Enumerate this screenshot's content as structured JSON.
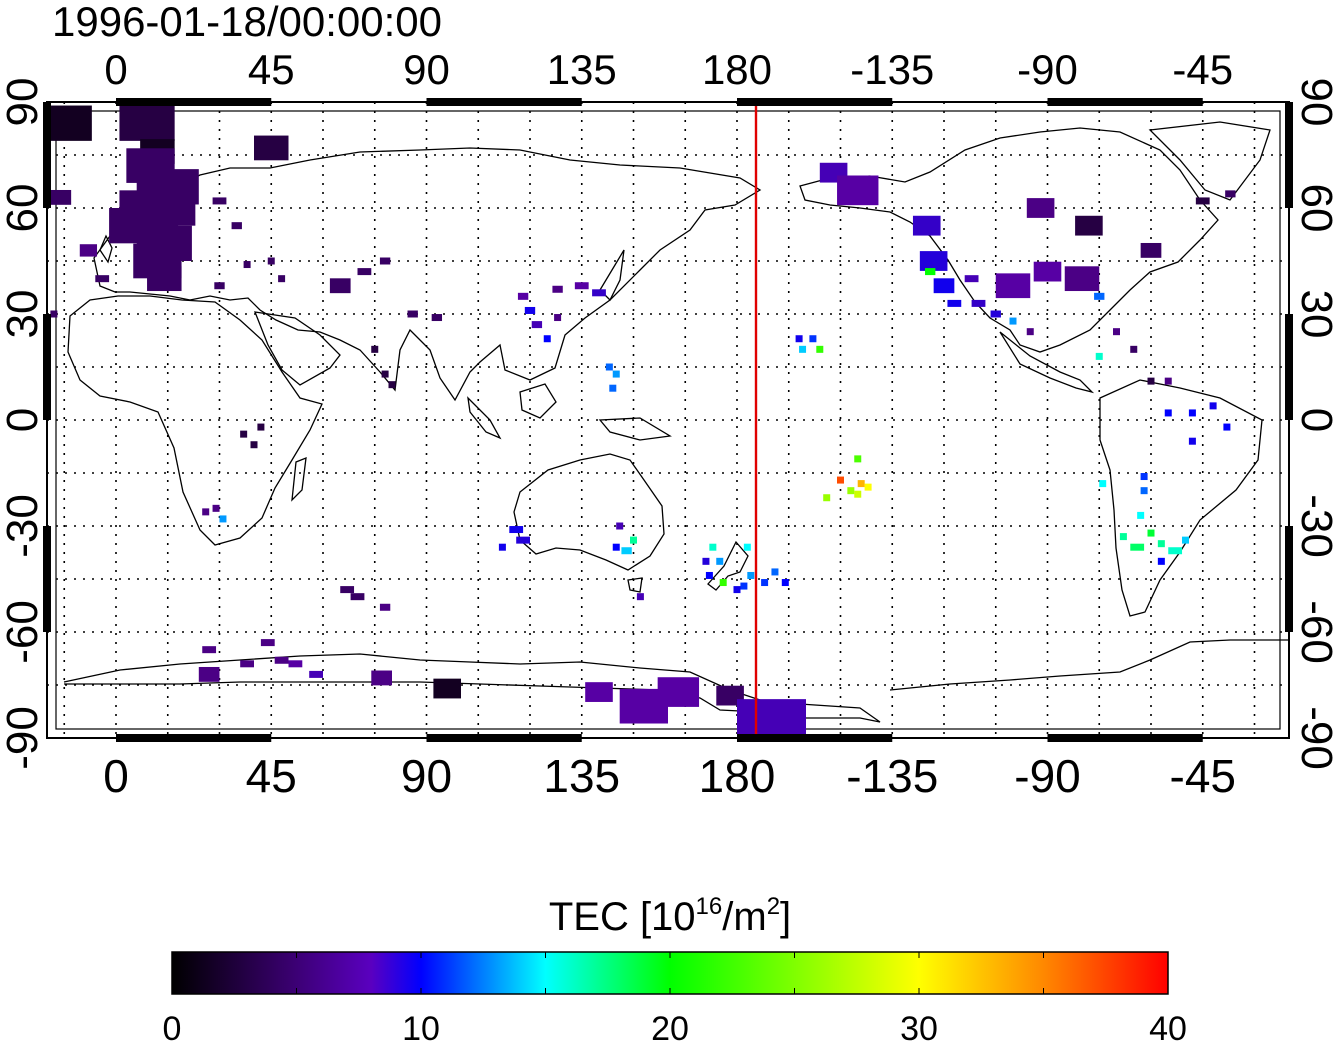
{
  "map": {
    "timestamp": "1996-01-18/00:00:00",
    "projection": "equirectangular",
    "center_longitude": 180,
    "lon_range": [
      -20,
      340
    ],
    "lat_range": [
      -90,
      90
    ],
    "grid": "dotted every 15 degrees",
    "dateline_longitude": 180,
    "dateline_color": "#e00000",
    "x_tick_labels": [
      {
        "lon": 0,
        "label": "0"
      },
      {
        "lon": 45,
        "label": "45"
      },
      {
        "lon": 90,
        "label": "90"
      },
      {
        "lon": 135,
        "label": "135"
      },
      {
        "lon": 180,
        "label": "180"
      },
      {
        "lon": 225,
        "label": "-135"
      },
      {
        "lon": 270,
        "label": "-90"
      },
      {
        "lon": 315,
        "label": "-45"
      }
    ],
    "y_tick_labels": [
      {
        "lat": 90,
        "label": "90"
      },
      {
        "lat": 60,
        "label": "60"
      },
      {
        "lat": 30,
        "label": "30"
      },
      {
        "lat": 0,
        "label": "0"
      },
      {
        "lat": -30,
        "label": "-30"
      },
      {
        "lat": -60,
        "label": "-60"
      },
      {
        "lat": -90,
        "label": "-90"
      }
    ],
    "tec_cells": [
      {
        "lon": -15,
        "lat": 84,
        "w": 16,
        "tec": 1
      },
      {
        "lon": 9,
        "lat": 84,
        "w": 16,
        "tec": 2
      },
      {
        "lon": 12,
        "lat": 76,
        "w": 10,
        "tec": 1
      },
      {
        "lon": 45,
        "lat": 77,
        "w": 10,
        "tec": 2
      },
      {
        "lon": 10,
        "lat": 72,
        "w": 14,
        "tec": 3
      },
      {
        "lon": 15,
        "lat": 66,
        "w": 18,
        "tec": 3
      },
      {
        "lon": 12,
        "lat": 60,
        "w": 22,
        "tec": 3
      },
      {
        "lon": 8,
        "lat": 55,
        "w": 20,
        "tec": 3
      },
      {
        "lon": 14,
        "lat": 50,
        "w": 16,
        "tec": 3
      },
      {
        "lon": 12,
        "lat": 45,
        "w": 14,
        "tec": 3
      },
      {
        "lon": 14,
        "lat": 40,
        "w": 10,
        "tec": 3
      },
      {
        "lon": -8,
        "lat": 48,
        "w": 5,
        "tec": 4
      },
      {
        "lon": -4,
        "lat": 40,
        "w": 4,
        "tec": 3
      },
      {
        "lon": -16,
        "lat": 63,
        "w": 6,
        "tec": 3
      },
      {
        "lon": 30,
        "lat": 62,
        "w": 4,
        "tec": 3
      },
      {
        "lon": 35,
        "lat": 55,
        "w": 3,
        "tec": 3
      },
      {
        "lon": 30,
        "lat": 38,
        "w": 3,
        "tec": 3
      },
      {
        "lon": 38,
        "lat": 44,
        "w": 2,
        "tec": 3
      },
      {
        "lon": 45,
        "lat": 45,
        "w": 2,
        "tec": 3
      },
      {
        "lon": 48,
        "lat": 40,
        "w": 2,
        "tec": 3
      },
      {
        "lon": 65,
        "lat": 38,
        "w": 6,
        "tec": 3
      },
      {
        "lon": 72,
        "lat": 42,
        "w": 4,
        "tec": 3
      },
      {
        "lon": 78,
        "lat": 45,
        "w": 3,
        "tec": 3
      },
      {
        "lon": 75,
        "lat": 20,
        "w": 2,
        "tec": 2
      },
      {
        "lon": 78,
        "lat": 13,
        "w": 2,
        "tec": 2
      },
      {
        "lon": 80,
        "lat": 10,
        "w": 2,
        "tec": 2
      },
      {
        "lon": 86,
        "lat": 30,
        "w": 3,
        "tec": 3
      },
      {
        "lon": 93,
        "lat": 29,
        "w": 3,
        "tec": 3
      },
      {
        "lon": -18,
        "lat": 30,
        "w": 2,
        "tec": 3
      },
      {
        "lon": 37,
        "lat": -4,
        "w": 2,
        "tec": 2
      },
      {
        "lon": 40,
        "lat": -7,
        "w": 2,
        "tec": 2
      },
      {
        "lon": 42,
        "lat": -2,
        "w": 2,
        "tec": 2
      },
      {
        "lon": 26,
        "lat": -26,
        "w": 2,
        "tec": 4
      },
      {
        "lon": 29,
        "lat": -25,
        "w": 2,
        "tec": 4
      },
      {
        "lon": 31,
        "lat": -28,
        "w": 2,
        "tec": 13
      },
      {
        "lon": 67,
        "lat": -48,
        "w": 4,
        "tec": 3
      },
      {
        "lon": 70,
        "lat": -50,
        "w": 4,
        "tec": 3
      },
      {
        "lon": 78,
        "lat": -53,
        "w": 3,
        "tec": 4
      },
      {
        "lon": 27,
        "lat": -65,
        "w": 4,
        "tec": 4
      },
      {
        "lon": 27,
        "lat": -72,
        "w": 6,
        "tec": 4
      },
      {
        "lon": 38,
        "lat": -69,
        "w": 4,
        "tec": 4
      },
      {
        "lon": 44,
        "lat": -63,
        "w": 4,
        "tec": 4
      },
      {
        "lon": 48,
        "lat": -68,
        "w": 4,
        "tec": 4
      },
      {
        "lon": 52,
        "lat": -69,
        "w": 4,
        "tec": 5
      },
      {
        "lon": 58,
        "lat": -72,
        "w": 4,
        "tec": 6
      },
      {
        "lon": 77,
        "lat": -73,
        "w": 6,
        "tec": 4
      },
      {
        "lon": 96,
        "lat": -76,
        "w": 8,
        "tec": 1
      },
      {
        "lon": 140,
        "lat": -77,
        "w": 8,
        "tec": 5
      },
      {
        "lon": 153,
        "lat": -81,
        "w": 14,
        "tec": 5
      },
      {
        "lon": 163,
        "lat": -77,
        "w": 12,
        "tec": 5
      },
      {
        "lon": 178,
        "lat": -78,
        "w": 8,
        "tec": 3
      },
      {
        "lon": 190,
        "lat": -84,
        "w": 20,
        "tec": 6
      },
      {
        "lon": 120,
        "lat": 31,
        "w": 3,
        "tec": 9
      },
      {
        "lon": 122,
        "lat": 27,
        "w": 3,
        "tec": 6
      },
      {
        "lon": 125,
        "lat": 23,
        "w": 2,
        "tec": 10
      },
      {
        "lon": 118,
        "lat": 35,
        "w": 3,
        "tec": 5
      },
      {
        "lon": 128,
        "lat": 29,
        "w": 2,
        "tec": 4
      },
      {
        "lon": 140,
        "lat": 36,
        "w": 4,
        "tec": 7
      },
      {
        "lon": 135,
        "lat": 38,
        "w": 4,
        "tec": 5
      },
      {
        "lon": 128,
        "lat": 37,
        "w": 3,
        "tec": 4
      },
      {
        "lon": 143,
        "lat": 15,
        "w": 2,
        "tec": 12
      },
      {
        "lon": 145,
        "lat": 13,
        "w": 2,
        "tec": 13
      },
      {
        "lon": 144,
        "lat": 9,
        "w": 2,
        "tec": 12
      },
      {
        "lon": 116,
        "lat": -31,
        "w": 4,
        "tec": 9
      },
      {
        "lon": 118,
        "lat": -34,
        "w": 4,
        "tec": 8
      },
      {
        "lon": 112,
        "lat": -36,
        "w": 2,
        "tec": 9
      },
      {
        "lon": 145,
        "lat": -36,
        "w": 2,
        "tec": 10
      },
      {
        "lon": 148,
        "lat": -37,
        "w": 3,
        "tec": 14
      },
      {
        "lon": 150,
        "lat": -34,
        "w": 2,
        "tec": 17
      },
      {
        "lon": 146,
        "lat": -30,
        "w": 2,
        "tec": 6
      },
      {
        "lon": 152,
        "lat": -50,
        "w": 2,
        "tec": 6
      },
      {
        "lon": 173,
        "lat": -36,
        "w": 2,
        "tec": 16
      },
      {
        "lon": 175,
        "lat": -40,
        "w": 2,
        "tec": 13
      },
      {
        "lon": 172,
        "lat": -44,
        "w": 2,
        "tec": 10
      },
      {
        "lon": 171,
        "lat": -40,
        "w": 2,
        "tec": 8
      },
      {
        "lon": 176,
        "lat": -46,
        "w": 2,
        "tec": 22
      },
      {
        "lon": 182,
        "lat": -47,
        "w": 2,
        "tec": 11
      },
      {
        "lon": 180,
        "lat": -48,
        "w": 2,
        "tec": 9
      },
      {
        "lon": 184,
        "lat": -44,
        "w": 2,
        "tec": 13
      },
      {
        "lon": 188,
        "lat": -46,
        "w": 2,
        "tec": 11
      },
      {
        "lon": 191,
        "lat": -43,
        "w": 2,
        "tec": 12
      },
      {
        "lon": 194,
        "lat": -46,
        "w": 2,
        "tec": 10
      },
      {
        "lon": 183,
        "lat": -36,
        "w": 2,
        "tec": 15
      },
      {
        "lon": 198,
        "lat": 23,
        "w": 2,
        "tec": 9
      },
      {
        "lon": 202,
        "lat": 23,
        "w": 2,
        "tec": 11
      },
      {
        "lon": 199,
        "lat": 20,
        "w": 2,
        "tec": 14
      },
      {
        "lon": 204,
        "lat": 20,
        "w": 2,
        "tec": 22
      },
      {
        "lon": 210,
        "lat": -17,
        "w": 2,
        "tec": 37
      },
      {
        "lon": 213,
        "lat": -20,
        "w": 2,
        "tec": 26
      },
      {
        "lon": 216,
        "lat": -18,
        "w": 2,
        "tec": 33
      },
      {
        "lon": 218,
        "lat": -19,
        "w": 2,
        "tec": 30
      },
      {
        "lon": 206,
        "lat": -22,
        "w": 2,
        "tec": 26
      },
      {
        "lon": 215,
        "lat": -11,
        "w": 2,
        "tec": 23
      },
      {
        "lon": 215,
        "lat": -21,
        "w": 2,
        "tec": 28
      },
      {
        "lon": 208,
        "lat": 70,
        "w": 8,
        "tec": 6
      },
      {
        "lon": 215,
        "lat": 65,
        "w": 12,
        "tec": 5
      },
      {
        "lon": 235,
        "lat": 55,
        "w": 8,
        "tec": 7
      },
      {
        "lon": 237,
        "lat": 45,
        "w": 8,
        "tec": 8
      },
      {
        "lon": 240,
        "lat": 38,
        "w": 6,
        "tec": 9
      },
      {
        "lon": 243,
        "lat": 33,
        "w": 4,
        "tec": 9
      },
      {
        "lon": 236,
        "lat": 42,
        "w": 3,
        "tec": 20
      },
      {
        "lon": 248,
        "lat": 40,
        "w": 4,
        "tec": 6
      },
      {
        "lon": 250,
        "lat": 33,
        "w": 4,
        "tec": 7
      },
      {
        "lon": 255,
        "lat": 30,
        "w": 3,
        "tec": 8
      },
      {
        "lon": 260,
        "lat": 38,
        "w": 10,
        "tec": 5
      },
      {
        "lon": 270,
        "lat": 42,
        "w": 8,
        "tec": 5
      },
      {
        "lon": 280,
        "lat": 40,
        "w": 10,
        "tec": 4
      },
      {
        "lon": 285,
        "lat": 35,
        "w": 3,
        "tec": 12
      },
      {
        "lon": 260,
        "lat": 28,
        "w": 2,
        "tec": 13
      },
      {
        "lon": 265,
        "lat": 25,
        "w": 2,
        "tec": 4
      },
      {
        "lon": 268,
        "lat": 60,
        "w": 8,
        "tec": 4
      },
      {
        "lon": 282,
        "lat": 55,
        "w": 8,
        "tec": 2
      },
      {
        "lon": 300,
        "lat": 48,
        "w": 6,
        "tec": 3
      },
      {
        "lon": 315,
        "lat": 62,
        "w": 4,
        "tec": 2
      },
      {
        "lon": 323,
        "lat": 64,
        "w": 3,
        "tec": 3
      },
      {
        "lon": 290,
        "lat": 25,
        "w": 2,
        "tec": 4
      },
      {
        "lon": 295,
        "lat": 20,
        "w": 2,
        "tec": 3
      },
      {
        "lon": 285,
        "lat": 18,
        "w": 2,
        "tec": 16
      },
      {
        "lon": 300,
        "lat": 11,
        "w": 2,
        "tec": 2
      },
      {
        "lon": 305,
        "lat": 11,
        "w": 2,
        "tec": 4
      },
      {
        "lon": 305,
        "lat": 2,
        "w": 2,
        "tec": 10
      },
      {
        "lon": 312,
        "lat": 2,
        "w": 2,
        "tec": 10
      },
      {
        "lon": 318,
        "lat": 4,
        "w": 2,
        "tec": 9
      },
      {
        "lon": 322,
        "lat": -2,
        "w": 2,
        "tec": 10
      },
      {
        "lon": 312,
        "lat": -6,
        "w": 2,
        "tec": 9
      },
      {
        "lon": 298,
        "lat": -16,
        "w": 2,
        "tec": 11
      },
      {
        "lon": 297,
        "lat": -27,
        "w": 2,
        "tec": 15
      },
      {
        "lon": 292,
        "lat": -33,
        "w": 2,
        "tec": 17
      },
      {
        "lon": 296,
        "lat": -36,
        "w": 4,
        "tec": 18
      },
      {
        "lon": 300,
        "lat": -32,
        "w": 2,
        "tec": 19
      },
      {
        "lon": 303,
        "lat": -35,
        "w": 2,
        "tec": 17
      },
      {
        "lon": 307,
        "lat": -37,
        "w": 4,
        "tec": 16
      },
      {
        "lon": 310,
        "lat": -34,
        "w": 2,
        "tec": 14
      },
      {
        "lon": 303,
        "lat": -40,
        "w": 2,
        "tec": 10
      },
      {
        "lon": 298,
        "lat": -20,
        "w": 2,
        "tec": 12
      },
      {
        "lon": 286,
        "lat": -18,
        "w": 2,
        "tec": 15
      }
    ]
  },
  "colorbar": {
    "title_prefix": "TEC  [10",
    "title_exponent": "16",
    "title_mid": "/m",
    "title_exponent2": "2",
    "title_suffix": "]",
    "min": 0,
    "max": 40,
    "tick_labels": [
      "0",
      "10",
      "20",
      "30",
      "40"
    ],
    "colors": [
      "#000000",
      "#5a00a0",
      "#0000ff",
      "#00ffff",
      "#00ff00",
      "#ffff00",
      "#ff0000"
    ]
  }
}
